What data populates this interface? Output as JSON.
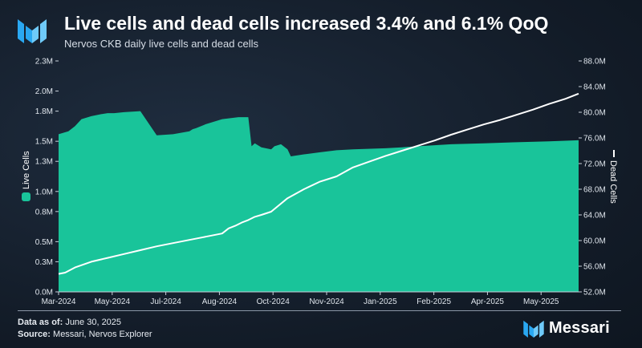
{
  "header": {
    "title": "Live cells and dead cells increased 3.4% and 6.1% QoQ",
    "subtitle": "Nervos CKB daily live cells and dead cells"
  },
  "footer": {
    "data_as_of_label": "Data as of:",
    "data_as_of_value": "June 30, 2025",
    "source_label": "Source:",
    "source_value": "Messari, Nervos Explorer",
    "brand": "Messari"
  },
  "colors": {
    "live": "#19c49a",
    "dead": "#ffffff",
    "axis": "#c9d1db"
  },
  "chart_data": {
    "type": "area",
    "series": [
      {
        "name": "Live Cells",
        "type": "area",
        "axis": "left",
        "x": [
          0,
          0.3,
          0.5,
          0.7,
          1.0,
          1.3,
          1.5,
          1.7,
          2.0,
          2.5,
          3.0,
          3.5,
          4.0,
          4.1,
          4.2,
          4.5,
          5.0,
          5.5,
          5.8,
          5.9,
          6.0,
          6.2,
          6.5,
          6.6,
          6.8,
          7.0,
          7.1,
          7.3,
          7.5,
          8.0,
          8.5,
          9.0,
          10.0,
          10.5,
          11.0,
          12.0,
          13.0,
          14.0,
          15.0,
          15.9
        ],
        "values": [
          1.57,
          1.6,
          1.65,
          1.72,
          1.75,
          1.77,
          1.78,
          1.78,
          1.79,
          1.8,
          1.56,
          1.57,
          1.6,
          1.62,
          1.63,
          1.67,
          1.72,
          1.74,
          1.74,
          1.45,
          1.48,
          1.44,
          1.42,
          1.45,
          1.47,
          1.42,
          1.35,
          1.36,
          1.37,
          1.39,
          1.41,
          1.42,
          1.43,
          1.44,
          1.45,
          1.47,
          1.48,
          1.49,
          1.5,
          1.51
        ]
      },
      {
        "name": "Dead Cells",
        "type": "line",
        "axis": "right",
        "x": [
          0,
          0.2,
          0.5,
          1.0,
          1.5,
          2.0,
          2.5,
          3.0,
          3.5,
          4.0,
          4.5,
          5.0,
          5.2,
          5.4,
          5.6,
          5.8,
          6.0,
          6.2,
          6.5,
          7.0,
          7.5,
          8.0,
          8.5,
          9.0,
          9.5,
          10.0,
          10.5,
          11.0,
          11.5,
          12.0,
          12.5,
          13.0,
          13.5,
          14.0,
          14.5,
          15.0,
          15.5,
          15.9
        ],
        "values": [
          54.8,
          55.0,
          55.8,
          56.7,
          57.3,
          57.9,
          58.5,
          59.1,
          59.6,
          60.1,
          60.6,
          61.1,
          61.9,
          62.3,
          62.8,
          63.2,
          63.7,
          64.0,
          64.5,
          66.6,
          68.0,
          69.2,
          70.0,
          71.4,
          72.3,
          73.2,
          74.0,
          74.8,
          75.6,
          76.5,
          77.3,
          78.1,
          78.8,
          79.6,
          80.4,
          81.3,
          82.1,
          82.9
        ]
      }
    ],
    "x_ticks": [
      "Mar-2024",
      "May-2024",
      "Jul-2024",
      "Aug-2024",
      "Oct-2024",
      "Nov-2024",
      "Jan-2025",
      "Feb-2025",
      "Apr-2025",
      "May-2025"
    ],
    "xlim": [
      0,
      15.9
    ],
    "y_left": {
      "label": "Live Cells",
      "lim": [
        0,
        2.3
      ],
      "ticks": [
        0,
        0.3,
        0.5,
        0.8,
        1.0,
        1.3,
        1.5,
        1.8,
        2.0,
        2.3
      ],
      "tick_labels": [
        "0.0M",
        "0.3M",
        "0.5M",
        "0.8M",
        "1.0M",
        "1.3M",
        "1.5M",
        "1.8M",
        "2.0M",
        "2.3M"
      ]
    },
    "y_right": {
      "label": "Dead Cells",
      "lim": [
        52,
        88
      ],
      "ticks": [
        52,
        56,
        60,
        64,
        68,
        72,
        76,
        80,
        84,
        88
      ],
      "tick_labels": [
        "52.0M",
        "56.0M",
        "60.0M",
        "64.0M",
        "68.0M",
        "72.0M",
        "76.0M",
        "80.0M",
        "84.0M",
        "88.0M"
      ]
    },
    "grid": false,
    "legend": "axis-labels"
  }
}
